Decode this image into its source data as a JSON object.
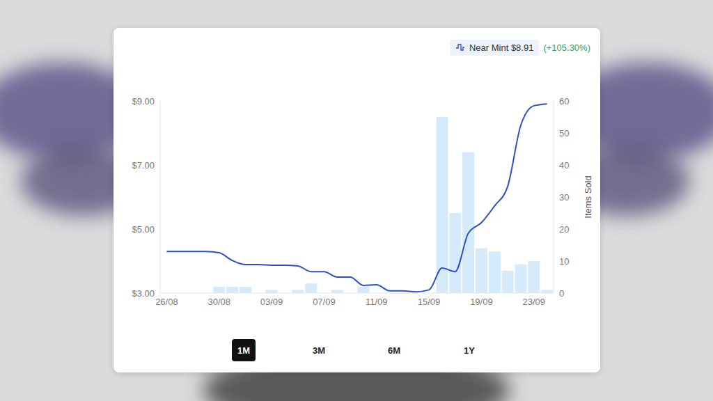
{
  "chart_data": {
    "type": "line",
    "title": "Near Mint $8.91",
    "subtitle": "(+105.30%)",
    "y2label": "Items Sold",
    "annotations": [
      "1M",
      "3M",
      "6M",
      "1Y"
    ],
    "categories": [
      "26/08",
      null,
      null,
      null,
      "30/08",
      null,
      null,
      null,
      "03/09",
      null,
      null,
      null,
      "07/09",
      null,
      null,
      null,
      "11/09",
      null,
      null,
      null,
      "15/09",
      null,
      null,
      null,
      "19/09",
      null,
      null,
      null,
      "23/09",
      null
    ],
    "series": [
      {
        "type": "bar",
        "axis": "y2",
        "color": "#d5ebfb",
        "values": [
          0,
          0,
          0,
          0,
          2,
          2,
          2,
          0,
          1,
          0,
          1,
          3,
          0,
          1,
          0,
          2,
          0,
          0,
          0,
          0,
          0,
          55,
          25,
          44,
          14,
          13,
          7,
          9,
          10,
          1
        ]
      },
      {
        "type": "line",
        "axis": "y",
        "color": "#2b4fc7",
        "values": [
          4.3,
          4.3,
          4.3,
          4.3,
          4.26,
          4.02,
          3.89,
          3.89,
          3.87,
          3.87,
          3.85,
          3.67,
          3.67,
          3.5,
          3.5,
          3.24,
          3.26,
          3.07,
          3.07,
          3.04,
          3.1,
          3.78,
          3.67,
          4.87,
          5.2,
          5.72,
          6.33,
          8.24,
          8.85,
          8.91
        ]
      }
    ],
    "ylim": [
      3,
      9
    ],
    "yticks": [
      {
        "value": 3,
        "label": "$3.00"
      },
      {
        "value": 5,
        "label": "$5.00"
      },
      {
        "value": 7,
        "label": "$7.00"
      },
      {
        "value": 9,
        "label": "$9.00"
      }
    ],
    "y2lim": [
      0,
      60
    ],
    "y2ticks": [
      0,
      10,
      20,
      30,
      40,
      50,
      60
    ],
    "grid": false
  }
}
